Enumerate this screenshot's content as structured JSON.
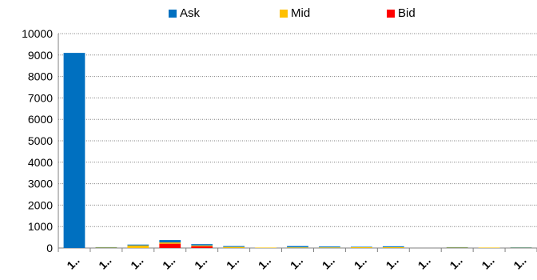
{
  "chart_data": {
    "type": "bar",
    "stacked": true,
    "categories": [
      "1..",
      "1..",
      "1..",
      "1..",
      "1..",
      "1..",
      "1..",
      "1..",
      "1..",
      "1..",
      "1..",
      "1..",
      "1..",
      "1..",
      "1.."
    ],
    "series": [
      {
        "name": "Bid",
        "color": "#ff0000",
        "values": [
          0,
          0,
          0,
          200,
          80,
          0,
          0,
          0,
          0,
          0,
          0,
          0,
          0,
          0,
          0
        ]
      },
      {
        "name": "Mid",
        "color": "#ffc000",
        "values": [
          0,
          20,
          120,
          60,
          40,
          50,
          20,
          30,
          30,
          40,
          40,
          0,
          20,
          20,
          20
        ]
      },
      {
        "name": "Ask",
        "color": "#0070c0",
        "values": [
          9100,
          20,
          40,
          110,
          60,
          40,
          0,
          60,
          40,
          20,
          40,
          0,
          20,
          0,
          10
        ]
      }
    ],
    "yticks": [
      "0",
      "1000",
      "2000",
      "3000",
      "4000",
      "5000",
      "6000",
      "7000",
      "8000",
      "9000",
      "10000"
    ],
    "ylim": [
      0,
      10000
    ],
    "grid": true,
    "legend": {
      "position": "top",
      "order": [
        "Ask",
        "Mid",
        "Bid"
      ]
    }
  }
}
